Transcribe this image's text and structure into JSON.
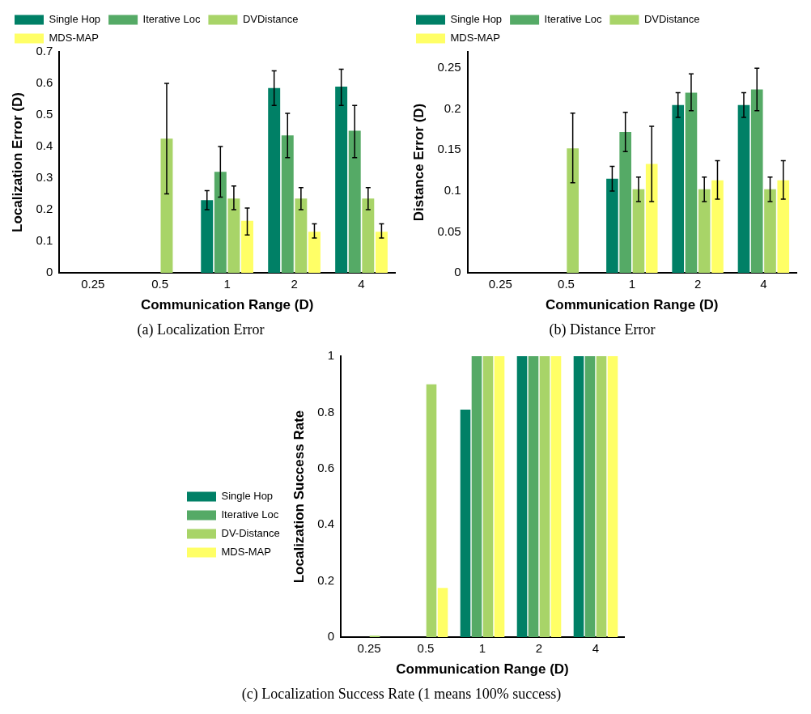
{
  "chart_data": [
    {
      "type": "bar",
      "title": "(a) Localization Error",
      "xlabel": "Communication Range (D)",
      "ylabel": "Localization Error (D)",
      "categories": [
        "0.25",
        "0.5",
        "1",
        "2",
        "4"
      ],
      "ylim": [
        0,
        0.7
      ],
      "yticks": [
        0,
        0.1,
        0.2,
        0.3,
        0.4,
        0.5,
        0.6,
        0.7
      ],
      "legend": "top left",
      "grid": false,
      "series": [
        {
          "name": "Single Hop",
          "color": "#008066",
          "values": [
            null,
            null,
            0.23,
            0.585,
            0.59
          ],
          "errors": [
            null,
            null,
            [
              0.2,
              0.26
            ],
            [
              0.53,
              0.64
            ],
            [
              0.53,
              0.645
            ]
          ]
        },
        {
          "name": "Iterative Loc",
          "color": "#55aa66",
          "values": [
            null,
            null,
            0.32,
            0.435,
            0.45
          ],
          "errors": [
            null,
            null,
            [
              0.24,
              0.4
            ],
            [
              0.365,
              0.505
            ],
            [
              0.365,
              0.53
            ]
          ]
        },
        {
          "name": "DVDistance",
          "color": "#a8d468",
          "values": [
            null,
            0.425,
            0.235,
            0.235,
            0.235
          ],
          "errors": [
            null,
            [
              0.25,
              0.6
            ],
            [
              0.2,
              0.275
            ],
            [
              0.2,
              0.27
            ],
            [
              0.2,
              0.27
            ]
          ]
        },
        {
          "name": "MDS-MAP",
          "color": "#ffff66",
          "values": [
            null,
            null,
            0.165,
            0.13,
            0.13
          ],
          "errors": [
            null,
            null,
            [
              0.12,
              0.205
            ],
            [
              0.11,
              0.155
            ],
            [
              0.11,
              0.155
            ]
          ]
        }
      ]
    },
    {
      "type": "bar",
      "title": "(b) Distance Error",
      "xlabel": "Communication Range (D)",
      "ylabel": "Distance Error (D)",
      "categories": [
        "0.25",
        "0.5",
        "1",
        "2",
        "4"
      ],
      "ylim": [
        0,
        0.27
      ],
      "yticks": [
        0,
        0.05,
        0.1,
        0.15,
        0.2,
        0.25
      ],
      "legend": "top left",
      "grid": false,
      "series": [
        {
          "name": "Single Hop",
          "color": "#008066",
          "values": [
            null,
            null,
            0.115,
            0.205,
            0.205
          ],
          "errors": [
            null,
            null,
            [
              0.1,
              0.13
            ],
            [
              0.19,
              0.22
            ],
            [
              0.19,
              0.22
            ]
          ]
        },
        {
          "name": "Iterative Loc",
          "color": "#55aa66",
          "values": [
            null,
            null,
            0.172,
            0.22,
            0.224
          ],
          "errors": [
            null,
            null,
            [
              0.148,
              0.196
            ],
            [
              0.198,
              0.243
            ],
            [
              0.198,
              0.25
            ]
          ]
        },
        {
          "name": "DVDistance",
          "color": "#a8d468",
          "values": [
            null,
            0.152,
            0.102,
            0.102,
            0.102
          ],
          "errors": [
            null,
            [
              0.11,
              0.195
            ],
            [
              0.087,
              0.117
            ],
            [
              0.087,
              0.117
            ],
            [
              0.087,
              0.117
            ]
          ]
        },
        {
          "name": "MDS-MAP",
          "color": "#ffff66",
          "values": [
            null,
            null,
            0.133,
            0.113,
            0.113
          ],
          "errors": [
            null,
            null,
            [
              0.087,
              0.179
            ],
            [
              0.09,
              0.137
            ],
            [
              0.09,
              0.137
            ]
          ]
        }
      ]
    },
    {
      "type": "bar",
      "title": "(c) Localization Success Rate (1 means 100% success)",
      "xlabel": "Communication Range (D)",
      "ylabel": "Localization Success Rate",
      "categories": [
        "0.25",
        "0.5",
        "1",
        "2",
        "4"
      ],
      "ylim": [
        0,
        1
      ],
      "yticks": [
        0,
        0.2,
        0.4,
        0.6,
        0.8,
        1
      ],
      "legend": "left",
      "grid": false,
      "series": [
        {
          "name": "Single Hop",
          "color": "#008066",
          "values": [
            null,
            null,
            0.81,
            1,
            1
          ]
        },
        {
          "name": "Iterative Loc",
          "color": "#55aa66",
          "values": [
            null,
            null,
            1,
            1,
            1
          ]
        },
        {
          "name": "DV-Distance",
          "color": "#a8d468",
          "values": [
            0.005,
            0.9,
            1,
            1,
            1
          ]
        },
        {
          "name": "MDS-MAP",
          "color": "#ffff66",
          "values": [
            null,
            0.175,
            1,
            1,
            1
          ]
        }
      ]
    }
  ]
}
